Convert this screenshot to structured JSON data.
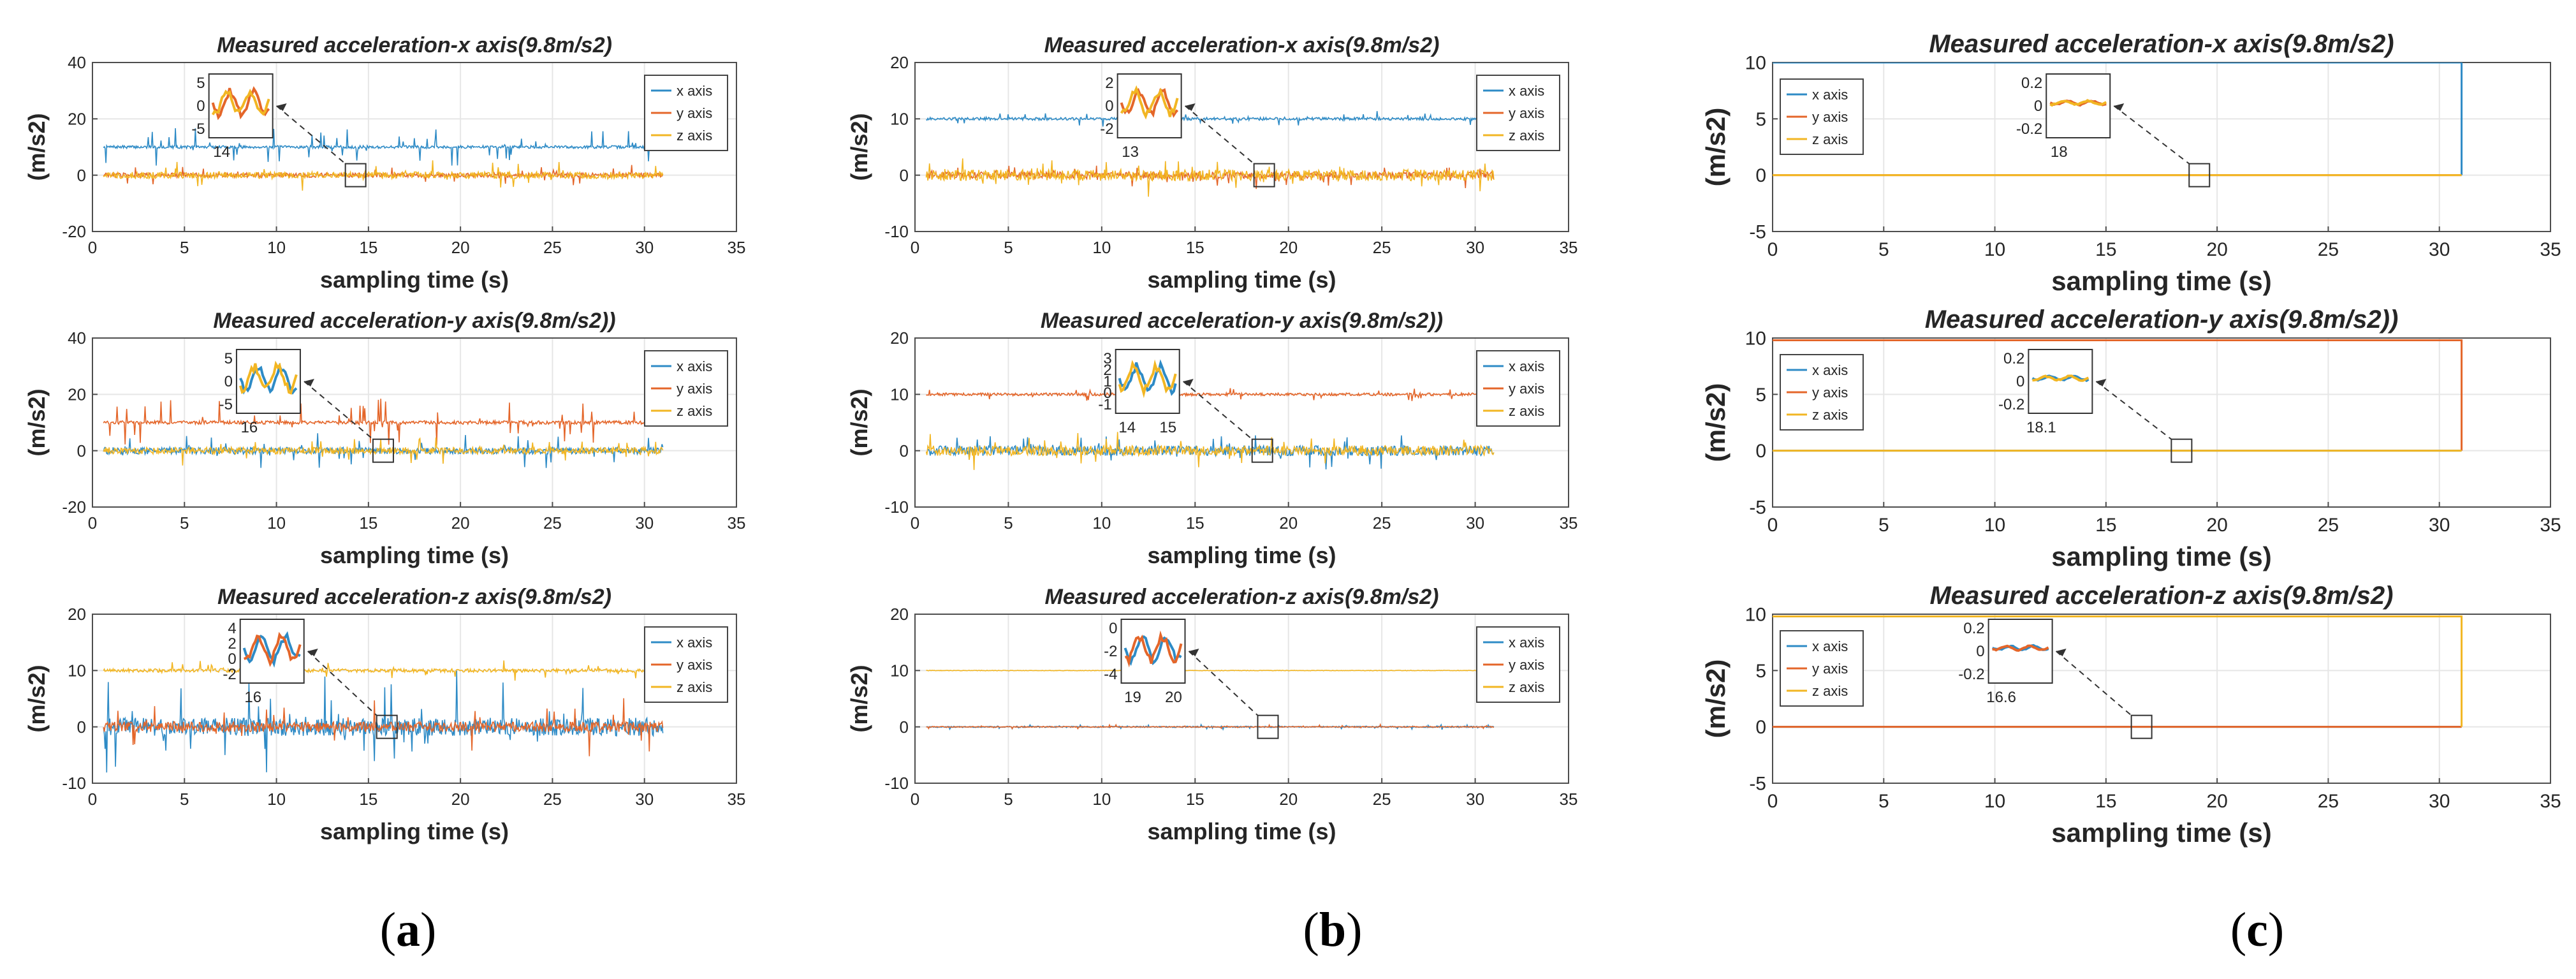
{
  "colors": {
    "x": "#2E8BC6",
    "y": "#E4662A",
    "z": "#F2B623",
    "grid": "#E6E6E6",
    "axis": "#4D4D4D",
    "text": "#262626"
  },
  "legend_labels": [
    "x axis",
    "y axis",
    "z axis"
  ],
  "captions": [
    {
      "open": "(",
      "letter": "a",
      "close": ")"
    },
    {
      "open": "(",
      "letter": "b",
      "close": ")"
    },
    {
      "open": "(",
      "letter": "c",
      "close": ")"
    }
  ],
  "chart_data": [
    {
      "id": "a1",
      "type": "line",
      "title": "Measured acceleration-x axis(9.8m/s2)",
      "xlabel": "sampling time (s)",
      "ylabel": "(m/s2)",
      "xlim": [
        0,
        35
      ],
      "ylim": [
        -20,
        40
      ],
      "xticks": [
        0,
        5,
        10,
        15,
        20,
        25,
        30,
        35
      ],
      "yticks": [
        -20,
        0,
        20,
        40
      ],
      "grid": true,
      "legend": "top-right",
      "series": [
        {
          "name": "x axis",
          "level": 10,
          "noise": 0.5,
          "spikes": 1.6,
          "end": 31
        },
        {
          "name": "y axis",
          "level": 0,
          "noise": 0.8,
          "spikes": 0.8,
          "end": 31
        },
        {
          "name": "z axis",
          "level": 0,
          "noise": 1.2,
          "spikes": 1.2,
          "end": 31
        }
      ],
      "inset": {
        "at": 14.3,
        "yticks": [
          5,
          0,
          -5
        ],
        "xticks": [
          "14"
        ]
      }
    },
    {
      "id": "b1",
      "type": "line",
      "title": "Measured acceleration-x axis(9.8m/s2)",
      "xlabel": "sampling time (s)",
      "ylabel": "(m/s2)",
      "xlim": [
        0,
        35
      ],
      "ylim": [
        -10,
        20
      ],
      "xticks": [
        0,
        5,
        10,
        15,
        20,
        25,
        30,
        35
      ],
      "yticks": [
        -10,
        0,
        10,
        20
      ],
      "grid": true,
      "legend": "top-right",
      "series": [
        {
          "name": "x axis",
          "level": 10,
          "noise": 0.25,
          "spikes": 0.3,
          "end": 31
        },
        {
          "name": "y axis",
          "level": 0,
          "noise": 0.6,
          "spikes": 0.5,
          "end": 31
        },
        {
          "name": "z axis",
          "level": 0,
          "noise": 1.0,
          "spikes": 0.8,
          "end": 31
        }
      ],
      "inset": {
        "at": 18.7,
        "yticks": [
          2,
          0,
          -2
        ],
        "xticks": [
          "13"
        ]
      }
    },
    {
      "id": "c1",
      "type": "line",
      "title": "Measured acceleration-x axis(9.8m/s2)",
      "xlabel": "sampling time (s)",
      "ylabel": "(m/s2)",
      "xlim": [
        0,
        35
      ],
      "ylim": [
        -5,
        10
      ],
      "xticks": [
        0,
        5,
        10,
        15,
        20,
        25,
        30,
        35
      ],
      "yticks": [
        -5,
        0,
        5,
        10
      ],
      "grid": true,
      "legend": "top-left",
      "series": [
        {
          "name": "x axis",
          "level": 10,
          "noise": 0,
          "spikes": 0,
          "end": 31
        },
        {
          "name": "y axis",
          "level": 0,
          "noise": 0,
          "spikes": 0,
          "end": 31
        },
        {
          "name": "z axis",
          "level": 0,
          "noise": 0,
          "spikes": 0,
          "end": 31
        }
      ],
      "inset": {
        "at": 19.2,
        "yticks": [
          0.2,
          0,
          -0.2
        ],
        "xticks": [
          "18"
        ]
      }
    },
    {
      "id": "a2",
      "type": "line",
      "title": "Measured acceleration-y axis(9.8m/s2))",
      "xlabel": "sampling time (s)",
      "ylabel": "(m/s2)",
      "xlim": [
        0,
        35
      ],
      "ylim": [
        -20,
        40
      ],
      "xticks": [
        0,
        5,
        10,
        15,
        20,
        25,
        30,
        35
      ],
      "yticks": [
        -20,
        0,
        20,
        40
      ],
      "grid": true,
      "legend": "top-right",
      "series": [
        {
          "name": "x axis",
          "level": 0,
          "noise": 1.2,
          "spikes": 1.4,
          "end": 31
        },
        {
          "name": "y axis",
          "level": 10,
          "noise": 0.6,
          "spikes": 2.2,
          "end": 31
        },
        {
          "name": "z axis",
          "level": 0,
          "noise": 1.2,
          "spikes": 1.2,
          "end": 31
        }
      ],
      "inset": {
        "at": 15.8,
        "yticks": [
          5,
          0,
          -5
        ],
        "xticks": [
          "16"
        ]
      }
    },
    {
      "id": "b2",
      "type": "line",
      "title": "Measured acceleration-y axis(9.8m/s2))",
      "xlabel": "sampling time (s)",
      "ylabel": "(m/s2)",
      "xlim": [
        0,
        35
      ],
      "ylim": [
        -10,
        20
      ],
      "xticks": [
        0,
        5,
        10,
        15,
        20,
        25,
        30,
        35
      ],
      "yticks": [
        -10,
        0,
        10,
        20
      ],
      "grid": true,
      "legend": "top-right",
      "series": [
        {
          "name": "x axis",
          "level": 0,
          "noise": 0.9,
          "spikes": 0.8,
          "end": 31
        },
        {
          "name": "y axis",
          "level": 10,
          "noise": 0.25,
          "spikes": 0.3,
          "end": 31
        },
        {
          "name": "z axis",
          "level": 0,
          "noise": 0.9,
          "spikes": 0.8,
          "end": 31
        }
      ],
      "inset": {
        "at": 18.6,
        "yticks": [
          3,
          2,
          1,
          0,
          -1
        ],
        "xticks": [
          "14",
          "15"
        ]
      }
    },
    {
      "id": "c2",
      "type": "line",
      "title": "Measured acceleration-y axis(9.8m/s2))",
      "xlabel": "sampling time (s)",
      "ylabel": "(m/s2)",
      "xlim": [
        0,
        35
      ],
      "ylim": [
        -5,
        10
      ],
      "xticks": [
        0,
        5,
        10,
        15,
        20,
        25,
        30,
        35
      ],
      "yticks": [
        -5,
        0,
        5,
        10
      ],
      "grid": true,
      "legend": "top-left",
      "series": [
        {
          "name": "x axis",
          "level": 0,
          "noise": 0,
          "spikes": 0,
          "end": 31
        },
        {
          "name": "y axis",
          "level": 9.8,
          "noise": 0,
          "spikes": 0,
          "end": 31
        },
        {
          "name": "z axis",
          "level": 0,
          "noise": 0,
          "spikes": 0,
          "end": 31
        }
      ],
      "inset": {
        "at": 18.4,
        "yticks": [
          0.2,
          0,
          -0.2
        ],
        "xticks": [
          "18.1"
        ]
      }
    },
    {
      "id": "a3",
      "type": "line",
      "title": "Measured acceleration-z axis(9.8m/s2)",
      "xlabel": "sampling time (s)",
      "ylabel": "(m/s2)",
      "xlim": [
        0,
        35
      ],
      "ylim": [
        -10,
        20
      ],
      "xticks": [
        0,
        5,
        10,
        15,
        20,
        25,
        30,
        35
      ],
      "yticks": [
        -10,
        0,
        10,
        20
      ],
      "grid": true,
      "legend": "top-right",
      "series": [
        {
          "name": "x axis",
          "level": 0,
          "noise": 1.6,
          "spikes": 2.4,
          "end": 31
        },
        {
          "name": "y axis",
          "level": 0,
          "noise": 0.9,
          "spikes": 1.2,
          "end": 31
        },
        {
          "name": "z axis",
          "level": 10,
          "noise": 0.3,
          "spikes": 0.4,
          "end": 31
        }
      ],
      "inset": {
        "at": 16.0,
        "yticks": [
          4,
          2,
          0,
          -2
        ],
        "xticks": [
          "16"
        ]
      }
    },
    {
      "id": "b3",
      "type": "line",
      "title": "Measured acceleration-z axis(9.8m/s2)",
      "xlabel": "sampling time (s)",
      "ylabel": "(m/s2)",
      "xlim": [
        0,
        35
      ],
      "ylim": [
        -10,
        20
      ],
      "xticks": [
        0,
        5,
        10,
        15,
        20,
        25,
        30,
        35
      ],
      "yticks": [
        -10,
        0,
        10,
        20
      ],
      "grid": true,
      "legend": "top-right",
      "series": [
        {
          "name": "x axis",
          "level": 0,
          "noise": 0.12,
          "spikes": 0.1,
          "end": 31
        },
        {
          "name": "y axis",
          "level": 0,
          "noise": 0.08,
          "spikes": 0.1,
          "end": 31
        },
        {
          "name": "z axis",
          "level": 10,
          "noise": 0.05,
          "spikes": 0,
          "end": 31
        }
      ],
      "inset": {
        "at": 18.9,
        "yticks": [
          0,
          -2,
          -4
        ],
        "xticks": [
          "19",
          "20"
        ]
      }
    },
    {
      "id": "c3",
      "type": "line",
      "title": "Measured acceleration-z axis(9.8m/s2)",
      "xlabel": "sampling time (s)",
      "ylabel": "(m/s2)",
      "xlim": [
        0,
        35
      ],
      "ylim": [
        -5,
        10
      ],
      "xticks": [
        0,
        5,
        10,
        15,
        20,
        25,
        30,
        35
      ],
      "yticks": [
        -5,
        0,
        5,
        10
      ],
      "grid": true,
      "legend": "top-left",
      "series": [
        {
          "name": "x axis",
          "level": 0,
          "noise": 0,
          "spikes": 0,
          "end": 31
        },
        {
          "name": "y axis",
          "level": 0,
          "noise": 0,
          "spikes": 0,
          "end": 31
        },
        {
          "name": "z axis",
          "level": 9.8,
          "noise": 0,
          "spikes": 0,
          "end": 31
        }
      ],
      "inset": {
        "at": 16.6,
        "yticks": [
          0.2,
          0,
          -0.2
        ],
        "xticks": [
          "16.6"
        ]
      }
    }
  ]
}
